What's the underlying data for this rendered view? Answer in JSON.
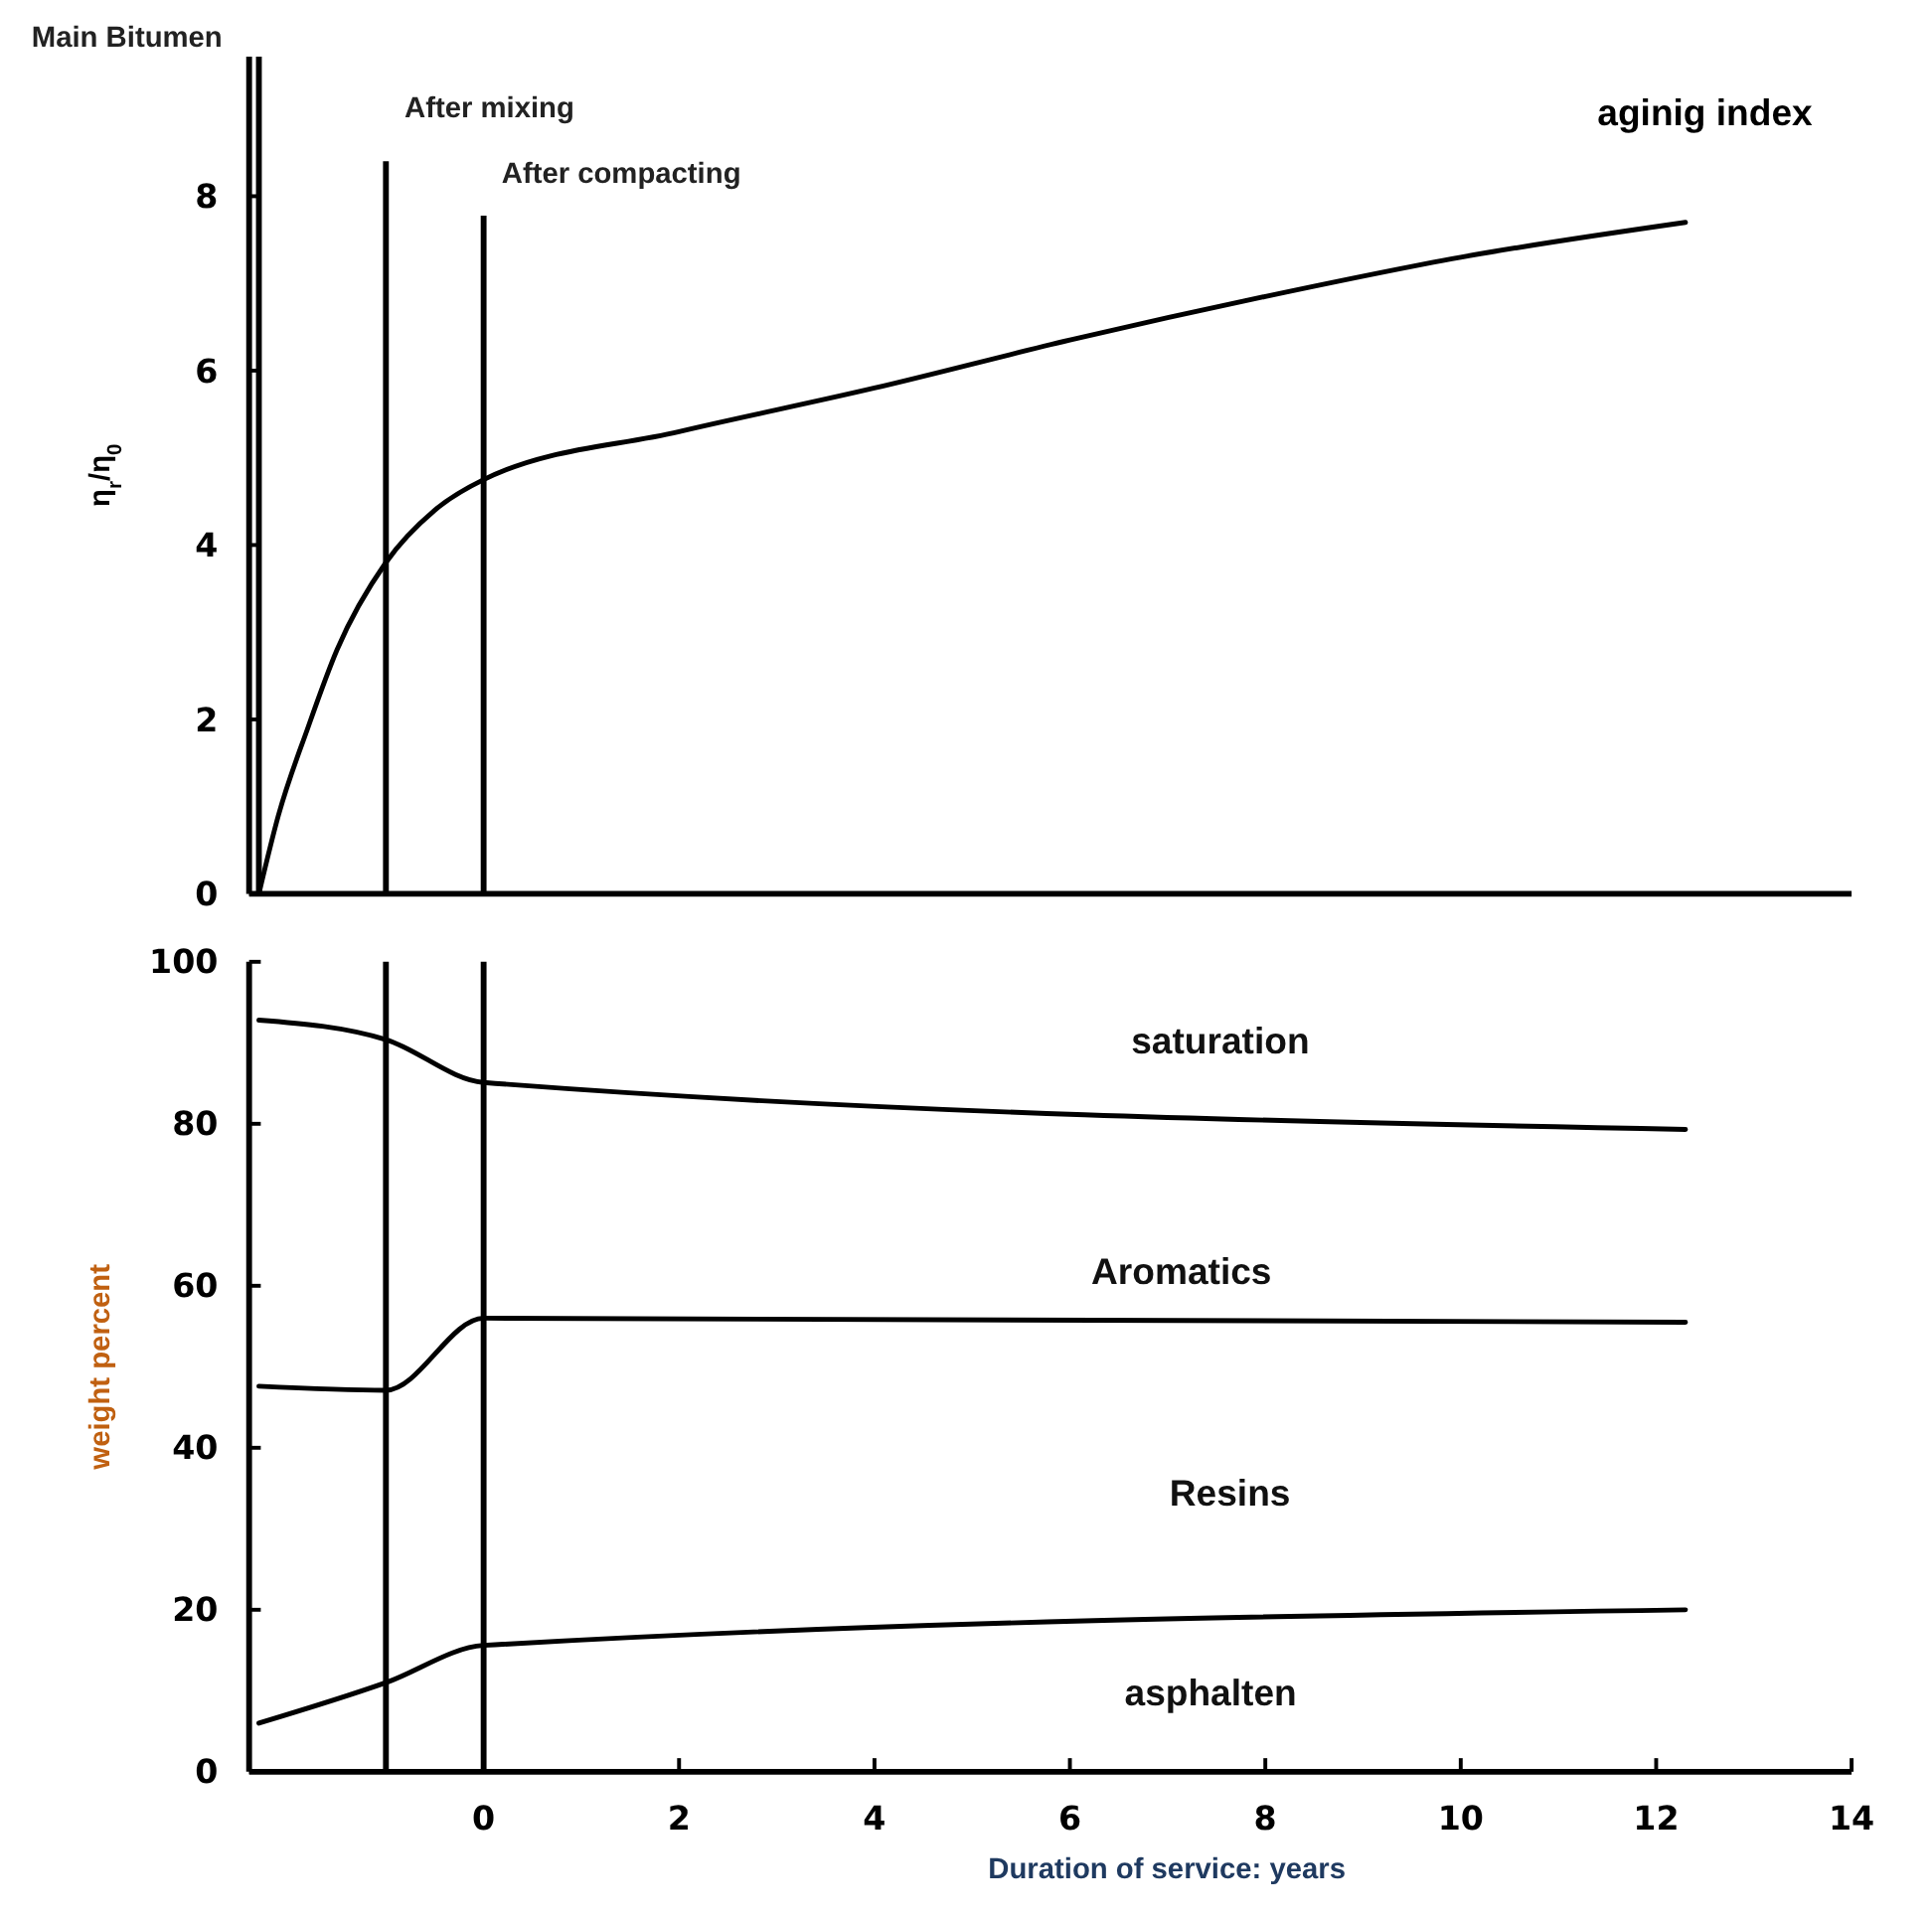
{
  "chart_data": [
    {
      "type": "line",
      "ylabel": "η$_{r}$/η$_{0}$",
      "xlim": [
        -2.4,
        14
      ],
      "ylim": [
        0,
        9.6
      ],
      "yticks": [
        0,
        2,
        4,
        6,
        8
      ],
      "tick_labels": "y",
      "series": [
        {
          "name": "aginig index",
          "color": "#000000",
          "x": [
            -2.3,
            -2.1,
            -1.8,
            -1.5,
            -1,
            -0.5,
            0,
            2,
            4,
            6,
            8,
            10,
            12.3
          ],
          "values": [
            0,
            0.9,
            1.9,
            2.8,
            3.8,
            4.4,
            4.75,
            5.3,
            5.8,
            6.35,
            6.85,
            7.3,
            7.7
          ]
        }
      ],
      "ref_lines": [
        {
          "axis": "x",
          "value": -2.3,
          "label": "Main Bitumen",
          "color": "#000000"
        },
        {
          "axis": "x",
          "value": -1,
          "label": "After mixing",
          "color": "#000000"
        },
        {
          "axis": "x",
          "value": 0,
          "label": "After compacting",
          "color": "#000000"
        }
      ]
    },
    {
      "type": "line",
      "xlabel": "Duration of service: years",
      "ylabel": "weight percent",
      "xlim": [
        -2.4,
        14
      ],
      "ylim": [
        0,
        100
      ],
      "xticks": [
        0,
        2,
        4,
        6,
        8,
        10,
        12,
        14
      ],
      "yticks": [
        0,
        20,
        40,
        60,
        80,
        100
      ],
      "series": [
        {
          "color": "#000000",
          "x": [
            -2.3,
            -1,
            0,
            12.3
          ],
          "values": [
            92.8,
            90.4,
            85.1,
            79.3
          ]
        },
        {
          "color": "#000000",
          "x": [
            -2.3,
            -1,
            0,
            12.3
          ],
          "values": [
            47.6,
            47.1,
            56,
            55.5
          ]
        },
        {
          "color": "#000000",
          "x": [
            -2.3,
            -1,
            0,
            12.3
          ],
          "values": [
            6,
            11,
            15.6,
            20
          ]
        }
      ],
      "ref_lines": [
        {
          "axis": "x",
          "value": -1,
          "color": "#000000"
        },
        {
          "axis": "x",
          "value": 0,
          "color": "#000000"
        }
      ],
      "annotations": [
        "saturation",
        "Aromatics",
        "Resins",
        "asphalten"
      ]
    }
  ]
}
